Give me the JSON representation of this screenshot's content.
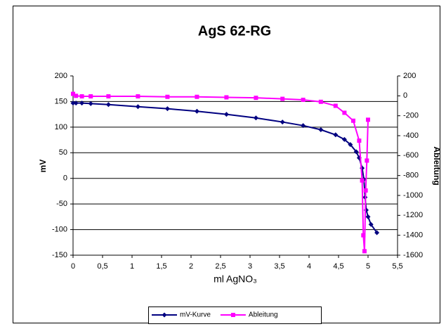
{
  "chart_data": {
    "type": "line",
    "title": "AgS 62-RG",
    "xlabel": "ml AgNO₃",
    "ylabel": "mV",
    "y2label": "Ableitung",
    "xlim": [
      0,
      5.5
    ],
    "xticks": [
      0,
      {
        "value": 0.5,
        "label": "0,5"
      },
      1,
      {
        "value": 1.5,
        "label": "1,5"
      },
      2,
      {
        "value": 2.5,
        "label": "2,5"
      },
      3,
      {
        "value": 3.5,
        "label": "3,5"
      },
      4,
      {
        "value": 4.5,
        "label": "4,5"
      },
      5,
      {
        "value": 5.5,
        "label": "5,5"
      }
    ],
    "ylim": [
      -150,
      200
    ],
    "yticks": [
      -150,
      -100,
      -50,
      0,
      50,
      100,
      150,
      200
    ],
    "y2lim": [
      -1600,
      200
    ],
    "y2ticks": [
      -1600,
      -1400,
      -1200,
      -1000,
      -800,
      -600,
      -400,
      -200,
      0,
      200
    ],
    "grid": true,
    "legend": "bottom",
    "series": [
      {
        "name": "mV-Kurve",
        "color": "#000080",
        "marker": "diamond",
        "x": [
          0,
          0.05,
          0.15,
          0.3,
          0.6,
          1.1,
          1.6,
          2.1,
          2.6,
          3.1,
          3.55,
          3.9,
          4.2,
          4.45,
          4.6,
          4.7,
          4.8,
          4.85,
          4.9,
          4.93,
          4.95,
          4.97,
          5.0,
          5.05,
          5.15
        ],
        "values": [
          147,
          147,
          147,
          146,
          144,
          140,
          136,
          131,
          125,
          118,
          110,
          103,
          95,
          85,
          76,
          66,
          52,
          40,
          20,
          -2,
          -37,
          -62,
          -75,
          -90,
          -106
        ]
      },
      {
        "name": "Ableitung",
        "color": "#ff00ff",
        "marker": "square",
        "axis": "y2",
        "x": [
          0,
          0.05,
          0.15,
          0.3,
          0.6,
          1.1,
          1.6,
          2.1,
          2.6,
          3.1,
          3.55,
          3.9,
          4.2,
          4.45,
          4.6,
          4.75,
          4.85,
          4.9,
          4.92,
          4.94,
          4.96,
          4.98,
          5.0
        ],
        "values": [
          20,
          0,
          -5,
          -5,
          -5,
          -5,
          -10,
          -10,
          -15,
          -20,
          -30,
          -40,
          -60,
          -100,
          -170,
          -250,
          -450,
          -850,
          -1400,
          -1560,
          -950,
          -650,
          -240
        ]
      }
    ]
  }
}
